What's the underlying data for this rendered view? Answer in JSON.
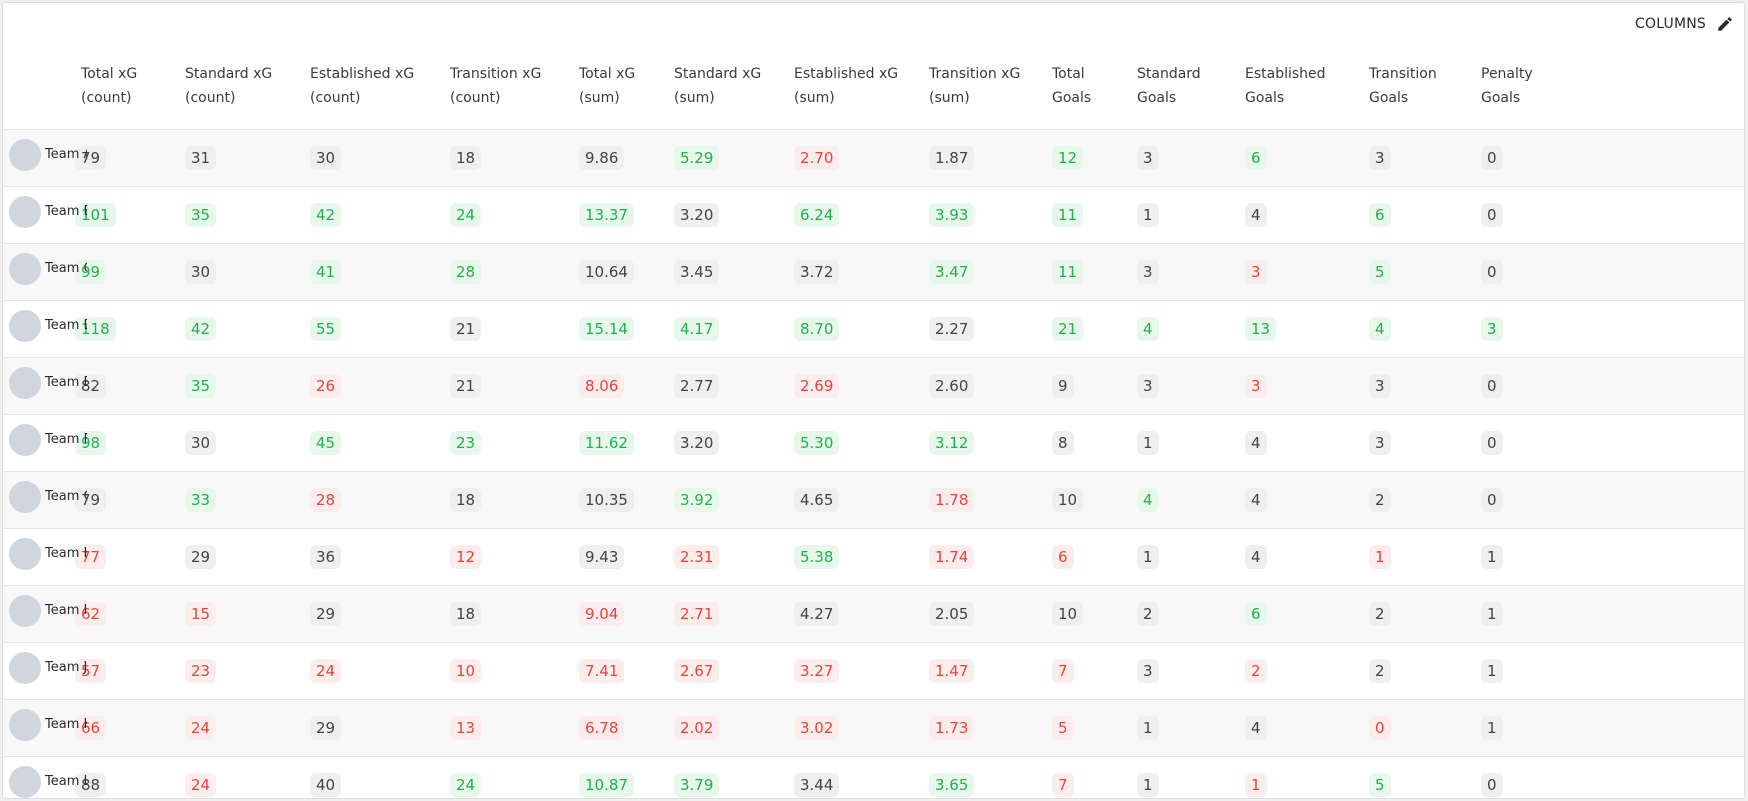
{
  "toolbar": {
    "columns_label": "COLUMNS",
    "icon": "pencil-icon"
  },
  "colors": {
    "good": "#22b04b",
    "bad": "#e2463d",
    "neutral": "#444444"
  },
  "columns": [
    {
      "l1": "Total xG",
      "l2": "(count)"
    },
    {
      "l1": "Standard xG",
      "l2": "(count)"
    },
    {
      "l1": "Established xG",
      "l2": "(count)"
    },
    {
      "l1": "Transition xG",
      "l2": "(count)"
    },
    {
      "l1": "Total xG",
      "l2": "(sum)"
    },
    {
      "l1": "Standard xG",
      "l2": "(sum)"
    },
    {
      "l1": "Established xG",
      "l2": "(sum)"
    },
    {
      "l1": "Transition xG",
      "l2": "(sum)"
    },
    {
      "l1": "Total",
      "l2": "Goals"
    },
    {
      "l1": "Standard",
      "l2": "Goals"
    },
    {
      "l1": "Established",
      "l2": "Goals"
    },
    {
      "l1": "Transition",
      "l2": "Goals"
    },
    {
      "l1": "Penalty",
      "l2": "Goals"
    }
  ],
  "rows": [
    {
      "team": "Team A",
      "cells": [
        {
          "v": "79",
          "s": "neutral"
        },
        {
          "v": "31",
          "s": "neutral"
        },
        {
          "v": "30",
          "s": "neutral"
        },
        {
          "v": "18",
          "s": "neutral"
        },
        {
          "v": "9.86",
          "s": "neutral"
        },
        {
          "v": "5.29",
          "s": "good"
        },
        {
          "v": "2.70",
          "s": "bad"
        },
        {
          "v": "1.87",
          "s": "neutral"
        },
        {
          "v": "12",
          "s": "good"
        },
        {
          "v": "3",
          "s": "neutral"
        },
        {
          "v": "6",
          "s": "good"
        },
        {
          "v": "3",
          "s": "neutral"
        },
        {
          "v": "0",
          "s": "neutral"
        }
      ]
    },
    {
      "team": "Team B",
      "cells": [
        {
          "v": "101",
          "s": "good"
        },
        {
          "v": "35",
          "s": "good"
        },
        {
          "v": "42",
          "s": "good"
        },
        {
          "v": "24",
          "s": "good"
        },
        {
          "v": "13.37",
          "s": "good"
        },
        {
          "v": "3.20",
          "s": "neutral"
        },
        {
          "v": "6.24",
          "s": "good"
        },
        {
          "v": "3.93",
          "s": "good"
        },
        {
          "v": "11",
          "s": "good"
        },
        {
          "v": "1",
          "s": "neutral"
        },
        {
          "v": "4",
          "s": "neutral"
        },
        {
          "v": "6",
          "s": "good"
        },
        {
          "v": "0",
          "s": "neutral"
        }
      ]
    },
    {
      "team": "Team C",
      "cells": [
        {
          "v": "99",
          "s": "good"
        },
        {
          "v": "30",
          "s": "neutral"
        },
        {
          "v": "41",
          "s": "good"
        },
        {
          "v": "28",
          "s": "good"
        },
        {
          "v": "10.64",
          "s": "neutral"
        },
        {
          "v": "3.45",
          "s": "neutral"
        },
        {
          "v": "3.72",
          "s": "neutral"
        },
        {
          "v": "3.47",
          "s": "good"
        },
        {
          "v": "11",
          "s": "good"
        },
        {
          "v": "3",
          "s": "neutral"
        },
        {
          "v": "3",
          "s": "bad"
        },
        {
          "v": "5",
          "s": "good"
        },
        {
          "v": "0",
          "s": "neutral"
        }
      ]
    },
    {
      "team": "Team D",
      "cells": [
        {
          "v": "118",
          "s": "good"
        },
        {
          "v": "42",
          "s": "good"
        },
        {
          "v": "55",
          "s": "good"
        },
        {
          "v": "21",
          "s": "neutral"
        },
        {
          "v": "15.14",
          "s": "good"
        },
        {
          "v": "4.17",
          "s": "good"
        },
        {
          "v": "8.70",
          "s": "good"
        },
        {
          "v": "2.27",
          "s": "neutral"
        },
        {
          "v": "21",
          "s": "good"
        },
        {
          "v": "4",
          "s": "good"
        },
        {
          "v": "13",
          "s": "good"
        },
        {
          "v": "4",
          "s": "good"
        },
        {
          "v": "3",
          "s": "good"
        }
      ]
    },
    {
      "team": "Team E",
      "cells": [
        {
          "v": "82",
          "s": "neutral"
        },
        {
          "v": "35",
          "s": "good"
        },
        {
          "v": "26",
          "s": "bad"
        },
        {
          "v": "21",
          "s": "neutral"
        },
        {
          "v": "8.06",
          "s": "bad"
        },
        {
          "v": "2.77",
          "s": "neutral"
        },
        {
          "v": "2.69",
          "s": "bad"
        },
        {
          "v": "2.60",
          "s": "neutral"
        },
        {
          "v": "9",
          "s": "neutral"
        },
        {
          "v": "3",
          "s": "neutral"
        },
        {
          "v": "3",
          "s": "bad"
        },
        {
          "v": "3",
          "s": "neutral"
        },
        {
          "v": "0",
          "s": "neutral"
        }
      ]
    },
    {
      "team": "Team F",
      "cells": [
        {
          "v": "98",
          "s": "good"
        },
        {
          "v": "30",
          "s": "neutral"
        },
        {
          "v": "45",
          "s": "good"
        },
        {
          "v": "23",
          "s": "good"
        },
        {
          "v": "11.62",
          "s": "good"
        },
        {
          "v": "3.20",
          "s": "neutral"
        },
        {
          "v": "5.30",
          "s": "good"
        },
        {
          "v": "3.12",
          "s": "good"
        },
        {
          "v": "8",
          "s": "neutral"
        },
        {
          "v": "1",
          "s": "neutral"
        },
        {
          "v": "4",
          "s": "neutral"
        },
        {
          "v": "3",
          "s": "neutral"
        },
        {
          "v": "0",
          "s": "neutral"
        }
      ]
    },
    {
      "team": "Team G",
      "cells": [
        {
          "v": "79",
          "s": "neutral"
        },
        {
          "v": "33",
          "s": "good"
        },
        {
          "v": "28",
          "s": "bad"
        },
        {
          "v": "18",
          "s": "neutral"
        },
        {
          "v": "10.35",
          "s": "neutral"
        },
        {
          "v": "3.92",
          "s": "good"
        },
        {
          "v": "4.65",
          "s": "neutral"
        },
        {
          "v": "1.78",
          "s": "bad"
        },
        {
          "v": "10",
          "s": "neutral"
        },
        {
          "v": "4",
          "s": "good"
        },
        {
          "v": "4",
          "s": "neutral"
        },
        {
          "v": "2",
          "s": "neutral"
        },
        {
          "v": "0",
          "s": "neutral"
        }
      ]
    },
    {
      "team": "Team H",
      "cells": [
        {
          "v": "77",
          "s": "bad"
        },
        {
          "v": "29",
          "s": "neutral"
        },
        {
          "v": "36",
          "s": "neutral"
        },
        {
          "v": "12",
          "s": "bad"
        },
        {
          "v": "9.43",
          "s": "neutral"
        },
        {
          "v": "2.31",
          "s": "bad"
        },
        {
          "v": "5.38",
          "s": "good"
        },
        {
          "v": "1.74",
          "s": "bad"
        },
        {
          "v": "6",
          "s": "bad"
        },
        {
          "v": "1",
          "s": "neutral"
        },
        {
          "v": "4",
          "s": "neutral"
        },
        {
          "v": "1",
          "s": "bad"
        },
        {
          "v": "1",
          "s": "neutral"
        }
      ]
    },
    {
      "team": "Team I",
      "cells": [
        {
          "v": "62",
          "s": "bad"
        },
        {
          "v": "15",
          "s": "bad"
        },
        {
          "v": "29",
          "s": "neutral"
        },
        {
          "v": "18",
          "s": "neutral"
        },
        {
          "v": "9.04",
          "s": "bad"
        },
        {
          "v": "2.71",
          "s": "bad"
        },
        {
          "v": "4.27",
          "s": "neutral"
        },
        {
          "v": "2.05",
          "s": "neutral"
        },
        {
          "v": "10",
          "s": "neutral"
        },
        {
          "v": "2",
          "s": "neutral"
        },
        {
          "v": "6",
          "s": "good"
        },
        {
          "v": "2",
          "s": "neutral"
        },
        {
          "v": "1",
          "s": "neutral"
        }
      ]
    },
    {
      "team": "Team J",
      "cells": [
        {
          "v": "57",
          "s": "bad"
        },
        {
          "v": "23",
          "s": "bad"
        },
        {
          "v": "24",
          "s": "bad"
        },
        {
          "v": "10",
          "s": "bad"
        },
        {
          "v": "7.41",
          "s": "bad"
        },
        {
          "v": "2.67",
          "s": "bad"
        },
        {
          "v": "3.27",
          "s": "bad"
        },
        {
          "v": "1.47",
          "s": "bad"
        },
        {
          "v": "7",
          "s": "bad"
        },
        {
          "v": "3",
          "s": "neutral"
        },
        {
          "v": "2",
          "s": "bad"
        },
        {
          "v": "2",
          "s": "neutral"
        },
        {
          "v": "1",
          "s": "neutral"
        }
      ]
    },
    {
      "team": "Team K",
      "cells": [
        {
          "v": "66",
          "s": "bad"
        },
        {
          "v": "24",
          "s": "bad"
        },
        {
          "v": "29",
          "s": "neutral"
        },
        {
          "v": "13",
          "s": "bad"
        },
        {
          "v": "6.78",
          "s": "bad"
        },
        {
          "v": "2.02",
          "s": "bad"
        },
        {
          "v": "3.02",
          "s": "bad"
        },
        {
          "v": "1.73",
          "s": "bad"
        },
        {
          "v": "5",
          "s": "bad"
        },
        {
          "v": "1",
          "s": "neutral"
        },
        {
          "v": "4",
          "s": "neutral"
        },
        {
          "v": "0",
          "s": "bad"
        },
        {
          "v": "1",
          "s": "neutral"
        }
      ]
    },
    {
      "team": "Team L",
      "cells": [
        {
          "v": "88",
          "s": "neutral"
        },
        {
          "v": "24",
          "s": "bad"
        },
        {
          "v": "40",
          "s": "neutral"
        },
        {
          "v": "24",
          "s": "good"
        },
        {
          "v": "10.87",
          "s": "good"
        },
        {
          "v": "3.79",
          "s": "good"
        },
        {
          "v": "3.44",
          "s": "neutral"
        },
        {
          "v": "3.65",
          "s": "good"
        },
        {
          "v": "7",
          "s": "bad"
        },
        {
          "v": "1",
          "s": "neutral"
        },
        {
          "v": "1",
          "s": "bad"
        },
        {
          "v": "5",
          "s": "good"
        },
        {
          "v": "0",
          "s": "neutral"
        }
      ]
    }
  ]
}
